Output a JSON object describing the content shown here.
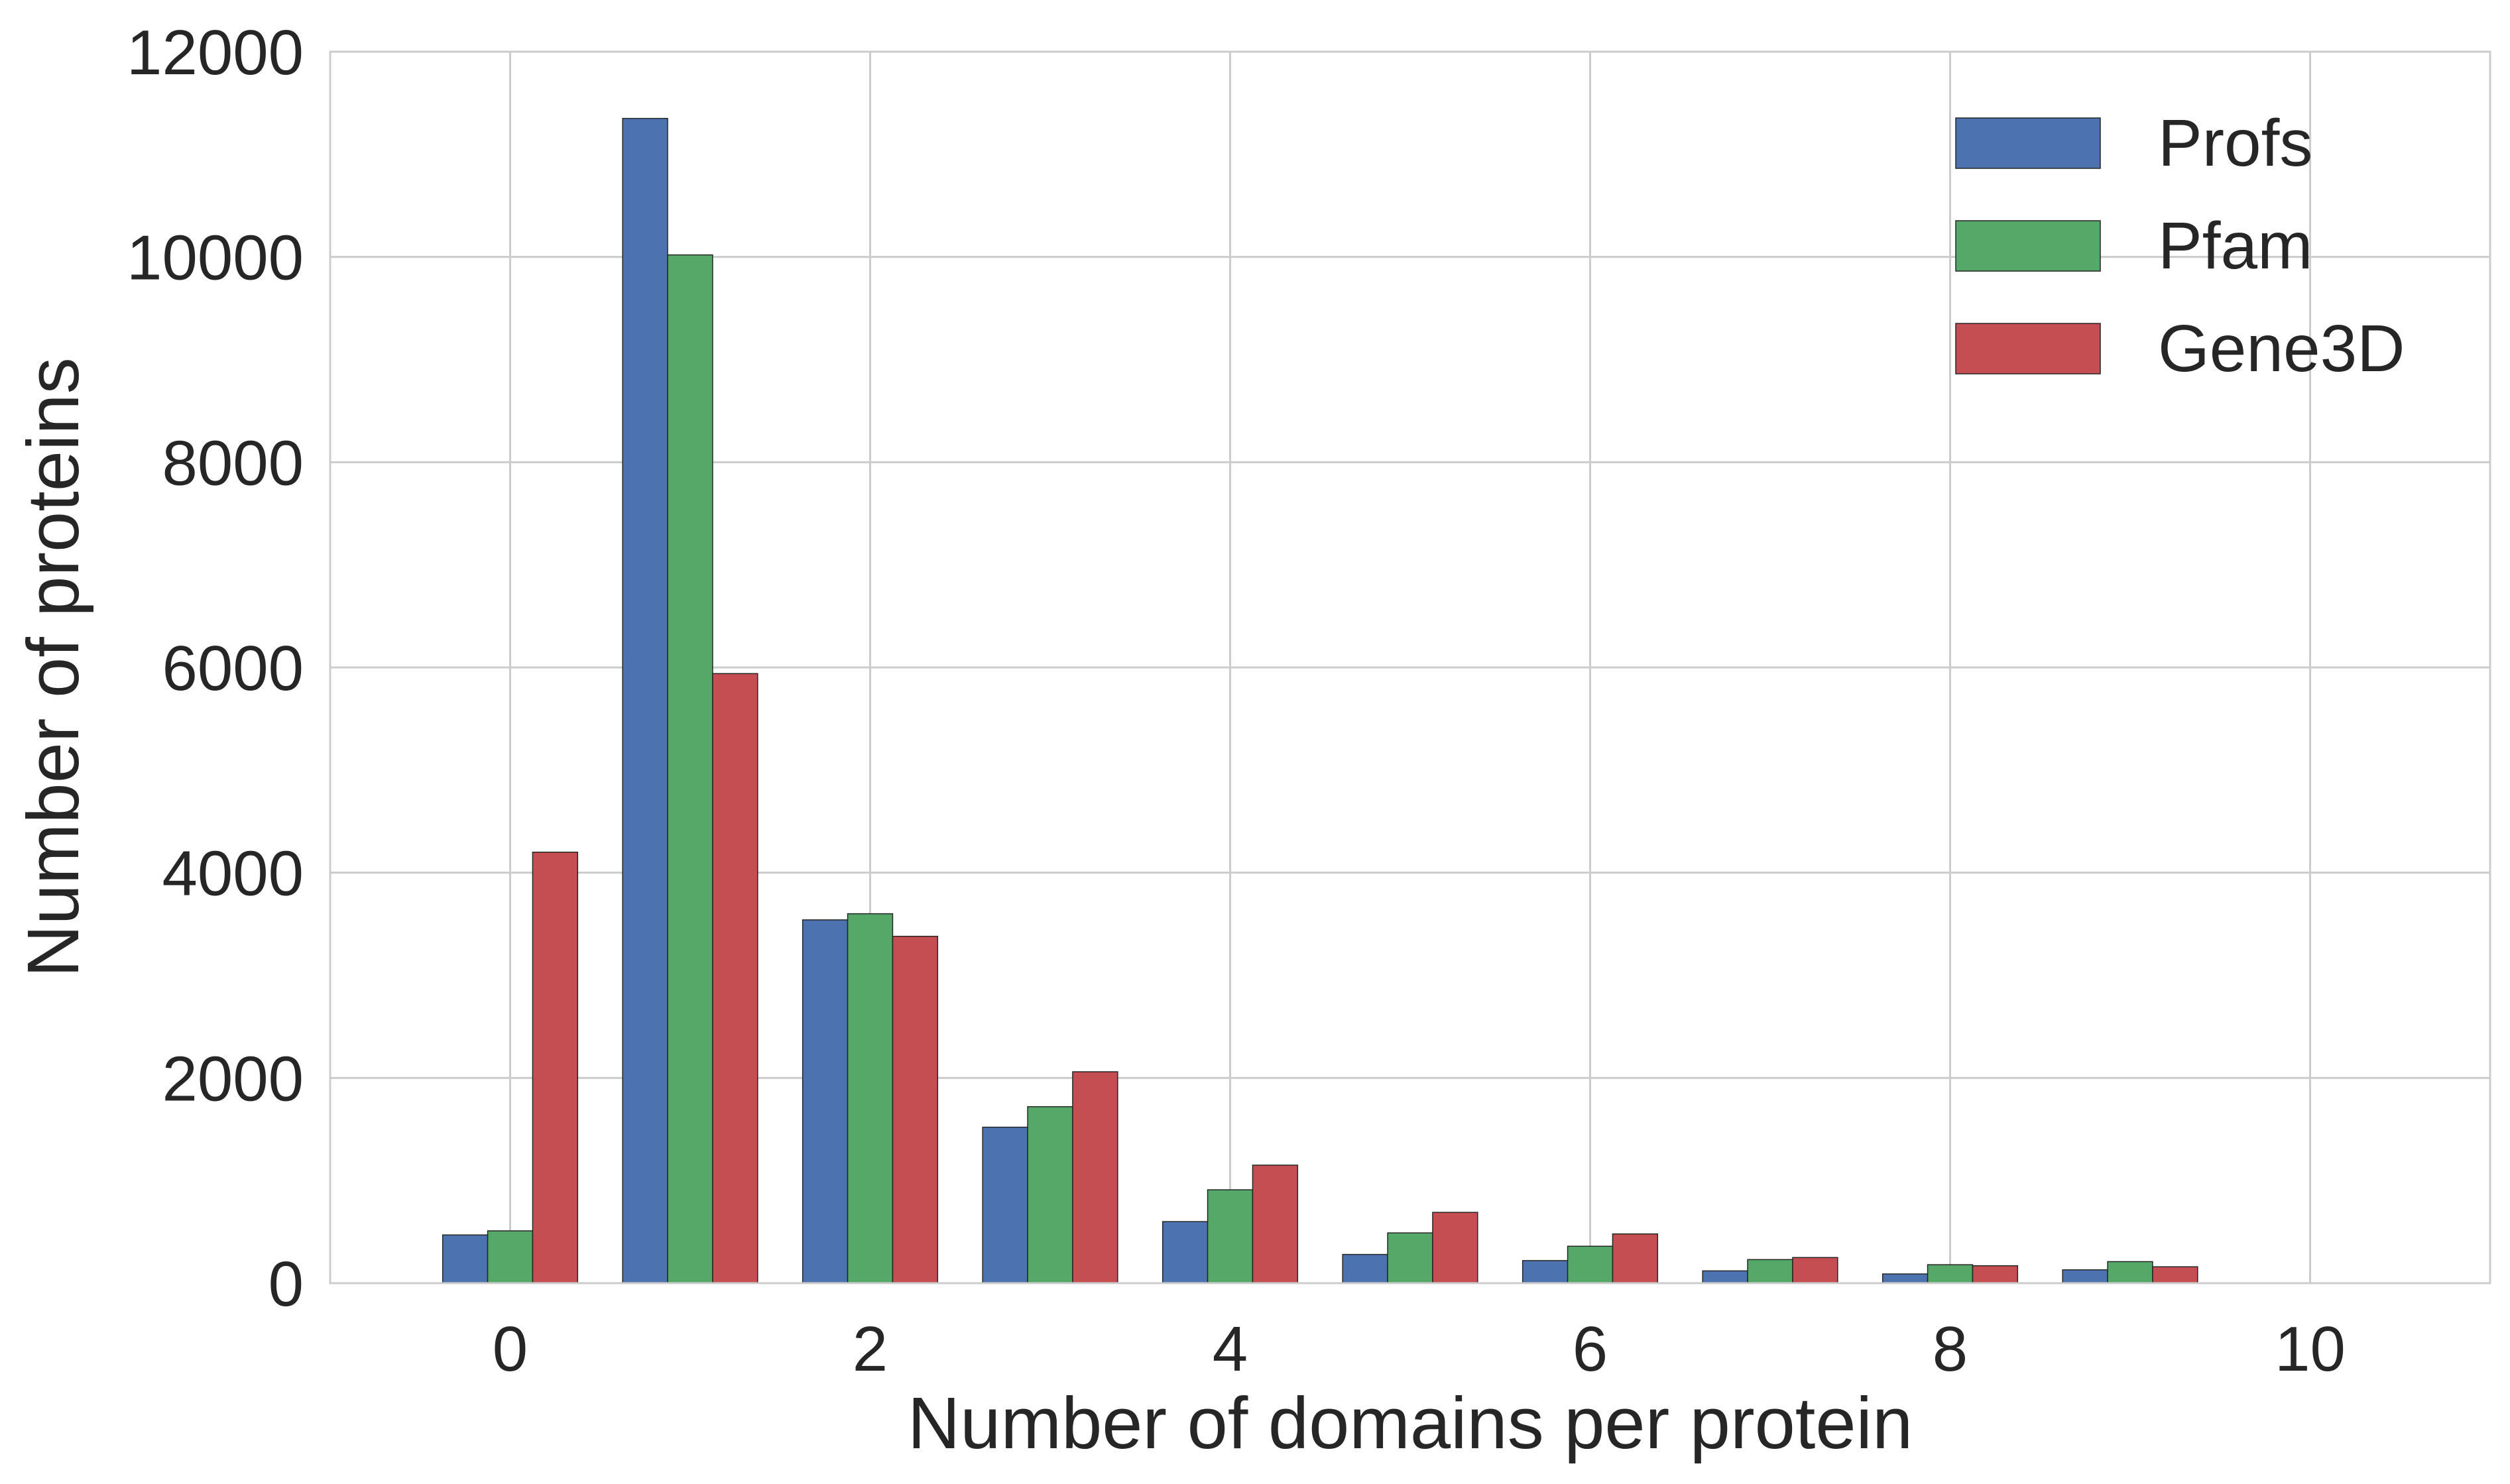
{
  "chart_data": {
    "type": "bar",
    "xlabel": "Number of domains per protein",
    "ylabel": "Number of proteins",
    "x": [
      0,
      1,
      2,
      3,
      4,
      5,
      6,
      7,
      8,
      9
    ],
    "xlim": [
      -1,
      11
    ],
    "ylim": [
      0,
      12000
    ],
    "xticks": [
      0,
      2,
      4,
      6,
      8,
      10
    ],
    "yticks": [
      0,
      2000,
      4000,
      6000,
      8000,
      10000,
      12000
    ],
    "grid": true,
    "legend_position": "top-right",
    "series": [
      {
        "name": "Profs",
        "color": "#4c72b0",
        "values": [
          470,
          11350,
          3540,
          1520,
          600,
          280,
          220,
          120,
          90,
          130
        ]
      },
      {
        "name": "Pfam",
        "color": "#55a868",
        "values": [
          510,
          10020,
          3600,
          1720,
          910,
          490,
          360,
          230,
          180,
          210
        ]
      },
      {
        "name": "Gene3D",
        "color": "#c44e52",
        "values": [
          4200,
          5940,
          3380,
          2060,
          1150,
          690,
          480,
          250,
          170,
          160
        ]
      }
    ]
  }
}
